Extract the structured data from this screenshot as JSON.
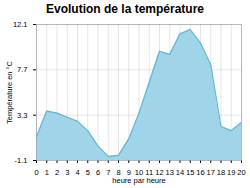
{
  "chart_data": {
    "type": "area",
    "title": "Evolution de la température",
    "x_label": "heure par heure",
    "y_label": "Température en °C",
    "x": [
      0,
      1,
      2,
      3,
      4,
      5,
      6,
      7,
      8,
      9,
      10,
      11,
      12,
      13,
      14,
      15,
      16,
      17,
      18,
      19,
      20
    ],
    "series": [
      {
        "type": "area",
        "color": "#a0d4e8",
        "values": [
          1.2,
          3.7,
          3.5,
          3.1,
          2.7,
          1.8,
          0.3,
          -0.7,
          -0.6,
          1.0,
          3.5,
          6.5,
          9.5,
          9.2,
          11.2,
          11.6,
          10.3,
          8.2,
          2.2,
          1.8,
          2.6
        ]
      },
      {
        "type": "line",
        "color": "#60b8d8",
        "values": [
          1.2,
          3.7,
          3.5,
          3.1,
          2.7,
          1.8,
          0.3,
          -0.7,
          -0.6,
          1.0,
          3.5,
          6.5,
          9.5,
          9.2,
          11.2,
          11.6,
          10.3,
          8.2,
          2.2,
          1.8,
          2.6
        ]
      }
    ],
    "xlim": [
      0,
      20
    ],
    "xticks": [
      0,
      1,
      2,
      3,
      4,
      5,
      6,
      7,
      8,
      9,
      10,
      11,
      12,
      13,
      14,
      15,
      16,
      17,
      18,
      19,
      20
    ],
    "ylim": [
      -1.1,
      12.1
    ],
    "yticks": [
      -1.1,
      3.3,
      7.7,
      12.1
    ],
    "grid": true
  }
}
